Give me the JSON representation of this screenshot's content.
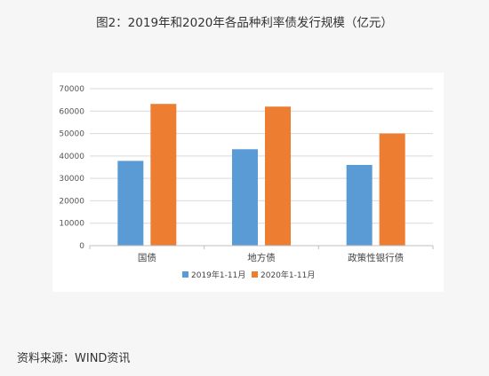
{
  "figure_title": "图2：2019年和2020年各品种利率债发行规模（亿元）",
  "source_note": "资料来源：WIND资讯",
  "chart_data": {
    "type": "bar",
    "title": "",
    "xlabel": "",
    "ylabel": "",
    "categories": [
      "国债",
      "地方债",
      "政策性银行债"
    ],
    "series": [
      {
        "name": "2019年1-11月",
        "values": [
          37800,
          43000,
          36000
        ],
        "color": "#5b9bd5"
      },
      {
        "name": "2020年1-11月",
        "values": [
          63200,
          62000,
          50000
        ],
        "color": "#ed7d31"
      }
    ],
    "ylim": [
      0,
      70000
    ],
    "yticks": [
      0,
      10000,
      20000,
      30000,
      40000,
      50000,
      60000,
      70000
    ],
    "grid": true,
    "legend_position": "bottom"
  }
}
